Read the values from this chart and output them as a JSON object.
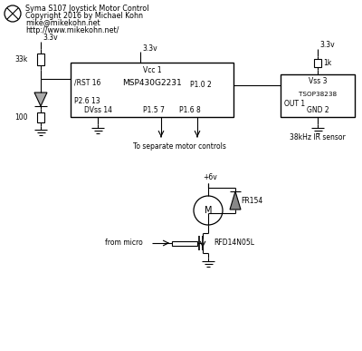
{
  "title_lines": [
    "Syma S107 Joystick Motor Control",
    "Copyright 2016 by Michael Kohn",
    "mike@mikekohn.net",
    "http://www.mikekohn.net/"
  ],
  "bg_color": "#ffffff",
  "line_color": "#000000",
  "text_color": "#000000",
  "font_size": 6.0,
  "small_font": 5.5,
  "figsize": [
    4.0,
    3.87
  ],
  "dpi": 100
}
